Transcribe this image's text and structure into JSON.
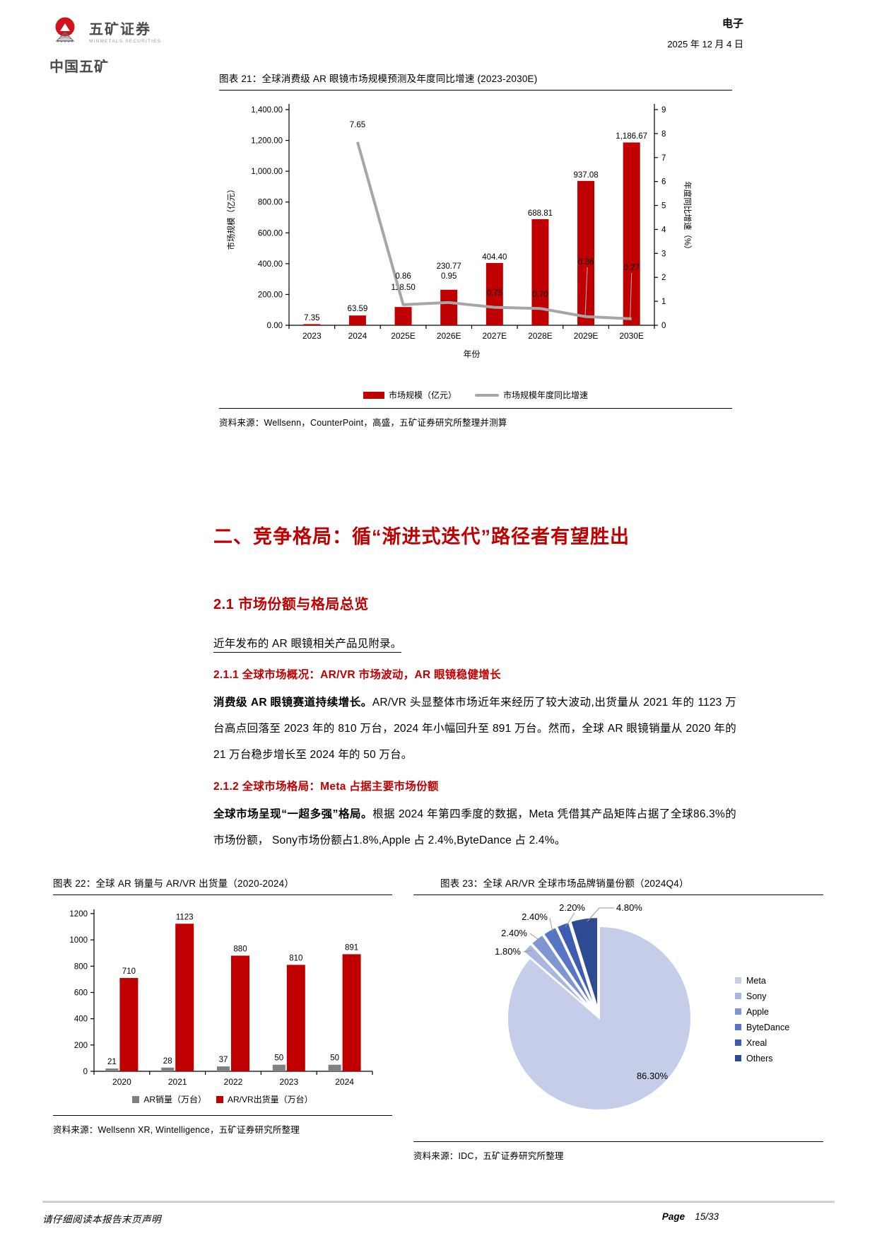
{
  "header": {
    "brand_cn": "中国五矿",
    "brand_name": "五矿证券",
    "brand_sub": "MINMETALS SECURITIES",
    "section": "电子",
    "date": "2025 年 12 月 4 日"
  },
  "figure21": {
    "title": "图表 21：全球消费级 AR 眼镜市场规模预测及年度同比增速 (2023-2030E)",
    "legend": [
      "市场规模（亿元）",
      "市场规模年度同比增速"
    ],
    "source": "资料来源：Wellsenn，CounterPoint，高盛，五矿证券研究所整理并测算"
  },
  "body": {
    "h1": "二、竞争格局：循“渐进式迭代”路径者有望胜出",
    "h2_1": "2.1 市场份额与格局总览",
    "p_intro": "近年发布的 AR 眼镜相关产品见附录。",
    "h2_1_1": "2.1.1 全球市场概况：AR/VR 市场波动，AR 眼镜稳健增长",
    "p1_lead": "消费级 AR 眼镜赛道持续增长。",
    "p1_text": "AR/VR 头显整体市场近年来经历了较大波动,出货量从 2021 年的 1123 万台高点回落至 2023 年的 810 万台，2024 年小幅回升至 891 万台。然而，全球 AR 眼镜销量从 2020 年的 21 万台稳步增长至 2024 年的 50 万台。",
    "h2_1_2": "2.1.2 全球市场格局：Meta 占据主要市场份额",
    "p2_lead": "全球市场呈现“一超多强”格局。",
    "p2_text": "根据 2024 年第四季度的数据，Meta 凭借其产品矩阵占据了全球86.3%的市场份额， Sony市场份额占1.8%,Apple 占 2.4%,ByteDance 占 2.4%。"
  },
  "figure22": {
    "title": "图表 22：全球 AR 销量与 AR/VR 出货量（2020-2024）",
    "source": "资料来源：Wellsenn XR, Wintelligence，五矿证券研究所整理"
  },
  "figure23": {
    "title": "图表 23：全球 AR/VR 全球市场品牌销量份额（2024Q4）",
    "source": "资料来源：IDC，五矿证券研究所整理"
  },
  "chart_data": [
    {
      "type": "bar+line",
      "title": "全球消费级 AR 眼镜市场规模预测及年度同比增速 (2023-2030E)",
      "categories": [
        "2023",
        "2024",
        "2025E",
        "2026E",
        "2027E",
        "2028E",
        "2029E",
        "2030E"
      ],
      "series": [
        {
          "name": "市场规模（亿元）",
          "type": "bar",
          "color": "#C00000",
          "values": [
            7.35,
            63.59,
            118.5,
            230.77,
            404.4,
            688.81,
            937.08,
            1186.67
          ],
          "labels": [
            "7.35",
            "63.59",
            "118.50",
            "230.77",
            "404.40",
            "688.81",
            "937.08",
            "1,186.67"
          ]
        },
        {
          "name": "市场规模年度同比增速",
          "type": "line",
          "color": "#A6A6A6",
          "values": [
            null,
            7.65,
            0.86,
            0.95,
            0.75,
            0.7,
            0.36,
            0.27
          ],
          "labels": [
            "7.65",
            "0.86",
            "0.95",
            "0.75",
            "0.70",
            "0.36",
            "0.27"
          ]
        }
      ],
      "xlabel": "年份",
      "ylabel_left": "市场规模（亿元）",
      "ylabel_right": "年度同比增速（%）",
      "ylim_left": [
        0,
        1400
      ],
      "ylim_right": [
        0,
        9
      ],
      "y_left_ticks": [
        "0.00",
        "200.00",
        "400.00",
        "600.00",
        "800.00",
        "1,000.00",
        "1,200.00",
        "1,400.00"
      ],
      "y_right_ticks": [
        "0",
        "1",
        "2",
        "3",
        "4",
        "5",
        "6",
        "7",
        "8",
        "9"
      ]
    },
    {
      "type": "bar",
      "title": "全球 AR 销量与 AR/VR 出货量（2020-2024）",
      "categories": [
        "2020",
        "2021",
        "2022",
        "2023",
        "2024"
      ],
      "series": [
        {
          "name": "AR销量（万台）",
          "color": "#808080",
          "values": [
            21,
            28,
            37,
            50,
            50
          ],
          "labels": [
            "21",
            "28",
            "37",
            "50",
            "50"
          ]
        },
        {
          "name": "AR/VR出货量（万台）",
          "color": "#C00000",
          "values": [
            710,
            1123,
            880,
            810,
            891
          ],
          "labels": [
            "710",
            "1123",
            "880",
            "810",
            "891"
          ]
        }
      ],
      "ylim": [
        0,
        1200
      ],
      "y_ticks": [
        "0",
        "200",
        "400",
        "600",
        "800",
        "1000",
        "1200"
      ]
    },
    {
      "type": "pie",
      "title": "全球 AR/VR 全球市场品牌销量份额（2024Q4）",
      "labels": [
        "Meta",
        "Sony",
        "Apple",
        "ByteDance",
        "Xreal",
        "Others"
      ],
      "values": [
        86.3,
        1.8,
        2.4,
        2.4,
        2.2,
        4.8
      ],
      "slice_labels": [
        "86.30%",
        "1.80%",
        "2.40%",
        "2.40%",
        "2.20%",
        "4.80%"
      ],
      "colors": [
        "#C5CDE9",
        "#A9B6E0",
        "#7E96D2",
        "#5675C4",
        "#3E5DB0",
        "#2E4B92"
      ],
      "legend_position": "right"
    }
  ],
  "footer": {
    "disclaimer": "请仔细阅读本报告末页声明",
    "page_word": "Page",
    "page_num": "15/33"
  }
}
